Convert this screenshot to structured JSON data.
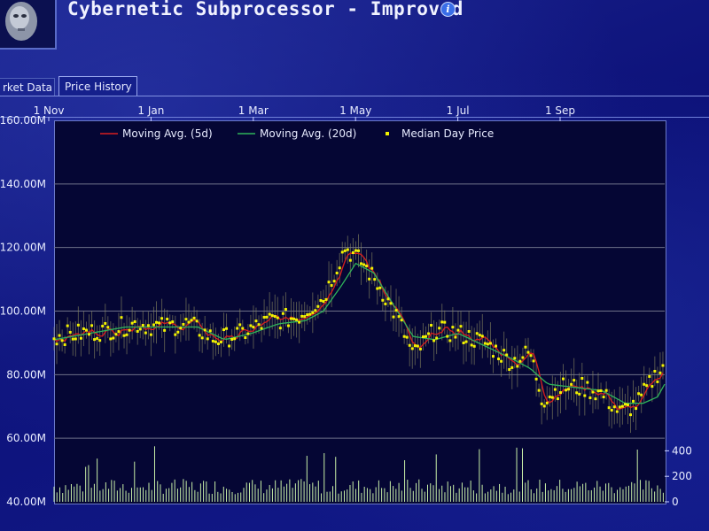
{
  "app": {
    "title": "Cybernetic Subprocessor - Improved",
    "info_icon": "info-icon"
  },
  "tabs": [
    {
      "label": "rket Data",
      "active": false
    },
    {
      "label": "Price History",
      "active": true
    }
  ],
  "colors": {
    "background": "#0f1478",
    "plot_background": "#050634",
    "ma5": "#d81e1e",
    "ma20": "#2fb35a",
    "median": "#f2f200",
    "volume": "#c9f0a8",
    "grid": "#6e7188"
  },
  "chart_data": {
    "type": "line",
    "x_ticks": [
      "1 Nov",
      "1 Jan",
      "1 Mar",
      "1 May",
      "1 Jul",
      "1 Sep"
    ],
    "y_ticks": [
      "160.00M",
      "140.00M",
      "120.00M",
      "100.00M",
      "80.00M",
      "60.00M",
      "40.00M"
    ],
    "ylim": [
      40,
      160
    ],
    "unit": "M",
    "volume_ticks": [
      "400",
      "200",
      "0"
    ],
    "volume_lim": [
      0,
      500
    ],
    "legend": [
      {
        "label": "Moving Avg.  (5d)",
        "color": "#d81e1e",
        "kind": "line"
      },
      {
        "label": "Moving Avg.  (20d)",
        "color": "#2fb35a",
        "kind": "line"
      },
      {
        "label": "Median Day Price",
        "color": "#f2f200",
        "kind": "marker"
      }
    ],
    "legend_position": "top",
    "grid": true,
    "x_range_days": [
      0,
      340
    ],
    "median_keypoints": [
      [
        0,
        92
      ],
      [
        15,
        93
      ],
      [
        30,
        94
      ],
      [
        45,
        96
      ],
      [
        60,
        95
      ],
      [
        75,
        96
      ],
      [
        90,
        91
      ],
      [
        105,
        93
      ],
      [
        120,
        97
      ],
      [
        135,
        98
      ],
      [
        150,
        104
      ],
      [
        162,
        120
      ],
      [
        172,
        115
      ],
      [
        182,
        107
      ],
      [
        192,
        97
      ],
      [
        200,
        86
      ],
      [
        212,
        94
      ],
      [
        225,
        93
      ],
      [
        240,
        90
      ],
      [
        255,
        84
      ],
      [
        265,
        87
      ],
      [
        272,
        72
      ],
      [
        282,
        76
      ],
      [
        295,
        76
      ],
      [
        305,
        74
      ],
      [
        315,
        68
      ],
      [
        325,
        71
      ],
      [
        335,
        80
      ],
      [
        340,
        83
      ]
    ],
    "ma20_keypoints": [
      [
        0,
        91
      ],
      [
        20,
        93
      ],
      [
        40,
        95
      ],
      [
        60,
        95
      ],
      [
        80,
        95
      ],
      [
        95,
        91
      ],
      [
        110,
        93
      ],
      [
        125,
        96
      ],
      [
        140,
        97
      ],
      [
        150,
        100
      ],
      [
        160,
        108
      ],
      [
        168,
        115
      ],
      [
        178,
        112
      ],
      [
        190,
        101
      ],
      [
        200,
        92
      ],
      [
        212,
        91
      ],
      [
        225,
        93
      ],
      [
        240,
        89
      ],
      [
        255,
        85
      ],
      [
        265,
        82
      ],
      [
        275,
        77
      ],
      [
        290,
        76
      ],
      [
        305,
        75
      ],
      [
        318,
        71
      ],
      [
        328,
        71
      ],
      [
        336,
        73
      ],
      [
        340,
        77
      ]
    ],
    "volume_level": [
      60,
      180
    ]
  }
}
